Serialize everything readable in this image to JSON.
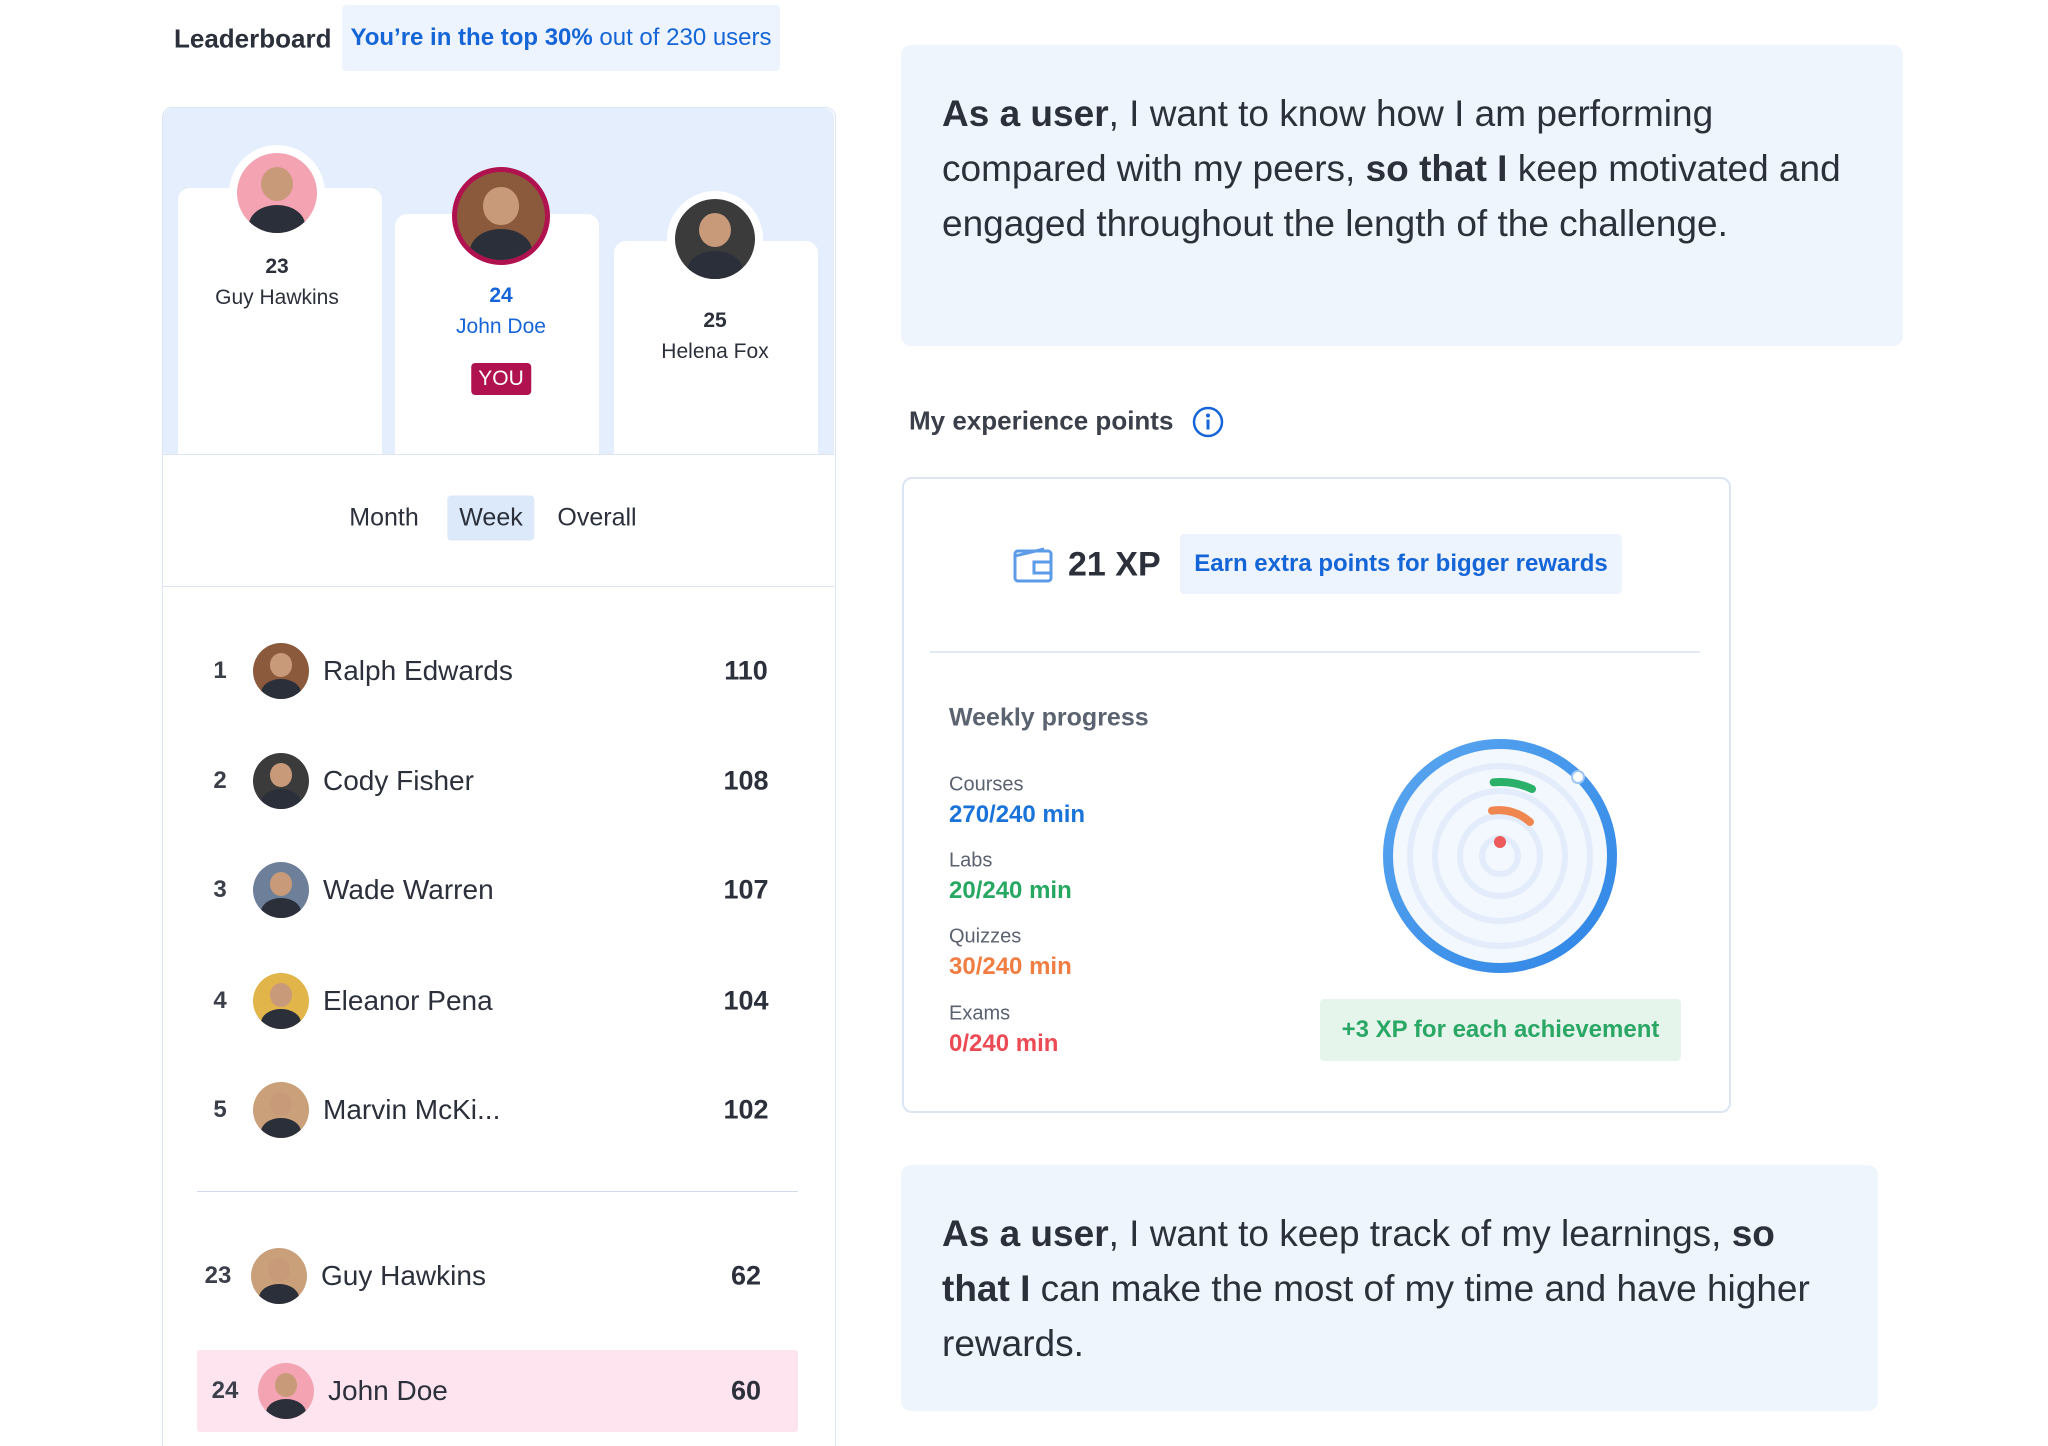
{
  "header": {
    "title": "Leaderboard",
    "badge": [
      {
        "text": "You’re in the top 30%",
        "bold": true
      },
      {
        "text": " out of 230 users",
        "bold": false
      }
    ]
  },
  "podium": [
    {
      "rank": 23,
      "name": "Guy Hawkins"
    },
    {
      "rank": 24,
      "name": "John Doe",
      "tag": "YOU"
    },
    {
      "rank": 25,
      "name": "Helena Fox"
    }
  ],
  "tabs": {
    "items": [
      "Month",
      "Week",
      "Overall"
    ],
    "active": 1
  },
  "rows": [
    {
      "rank": 1,
      "name": "Ralph Edwards",
      "points": 110
    },
    {
      "rank": 2,
      "name": "Cody Fisher",
      "points": 108
    },
    {
      "rank": 3,
      "name": "Wade Warren",
      "points": 107
    },
    {
      "rank": 4,
      "name": "Eleanor Pena",
      "points": 104
    },
    {
      "rank": 5,
      "name": "Marvin McKi...",
      "points": 102
    }
  ],
  "my_rows": [
    {
      "rank": 23,
      "name": "Guy Hawkins",
      "points": 62
    },
    {
      "rank": 24,
      "name": "John Doe",
      "points": 60,
      "highlight": true
    }
  ],
  "story_1": [
    {
      "text": "As a user",
      "bold": true
    },
    {
      "text": ", I want to know how I am performing compared with my peers, ",
      "bold": false
    },
    {
      "text": "so that I",
      "bold": true
    },
    {
      "text": " keep motivated and engaged throughout the length of the challenge.",
      "bold": false
    }
  ],
  "xp": {
    "title": "My experience points",
    "amount": "21 XP",
    "cta": "Earn extra points for bigger rewards",
    "progress_title": "Weekly progress",
    "items": [
      {
        "label": "Courses",
        "value": "270/240 min",
        "color": "#1a73d9"
      },
      {
        "label": "Labs",
        "value": "20/240 min",
        "color": "#27a862"
      },
      {
        "label": "Quizzes",
        "value": "30/240 min",
        "color": "#f07e42"
      },
      {
        "label": "Exams",
        "value": "0/240 min",
        "color": "#ec4b55"
      }
    ],
    "bonus": "+3 XP for each achievement"
  },
  "story_2": [
    {
      "text": "As a user",
      "bold": true
    },
    {
      "text": ", I want to keep track of my learnings, ",
      "bold": false
    },
    {
      "text": "so that I",
      "bold": true
    },
    {
      "text": " can make the most of my time and have higher rewards.",
      "bold": false
    }
  ]
}
